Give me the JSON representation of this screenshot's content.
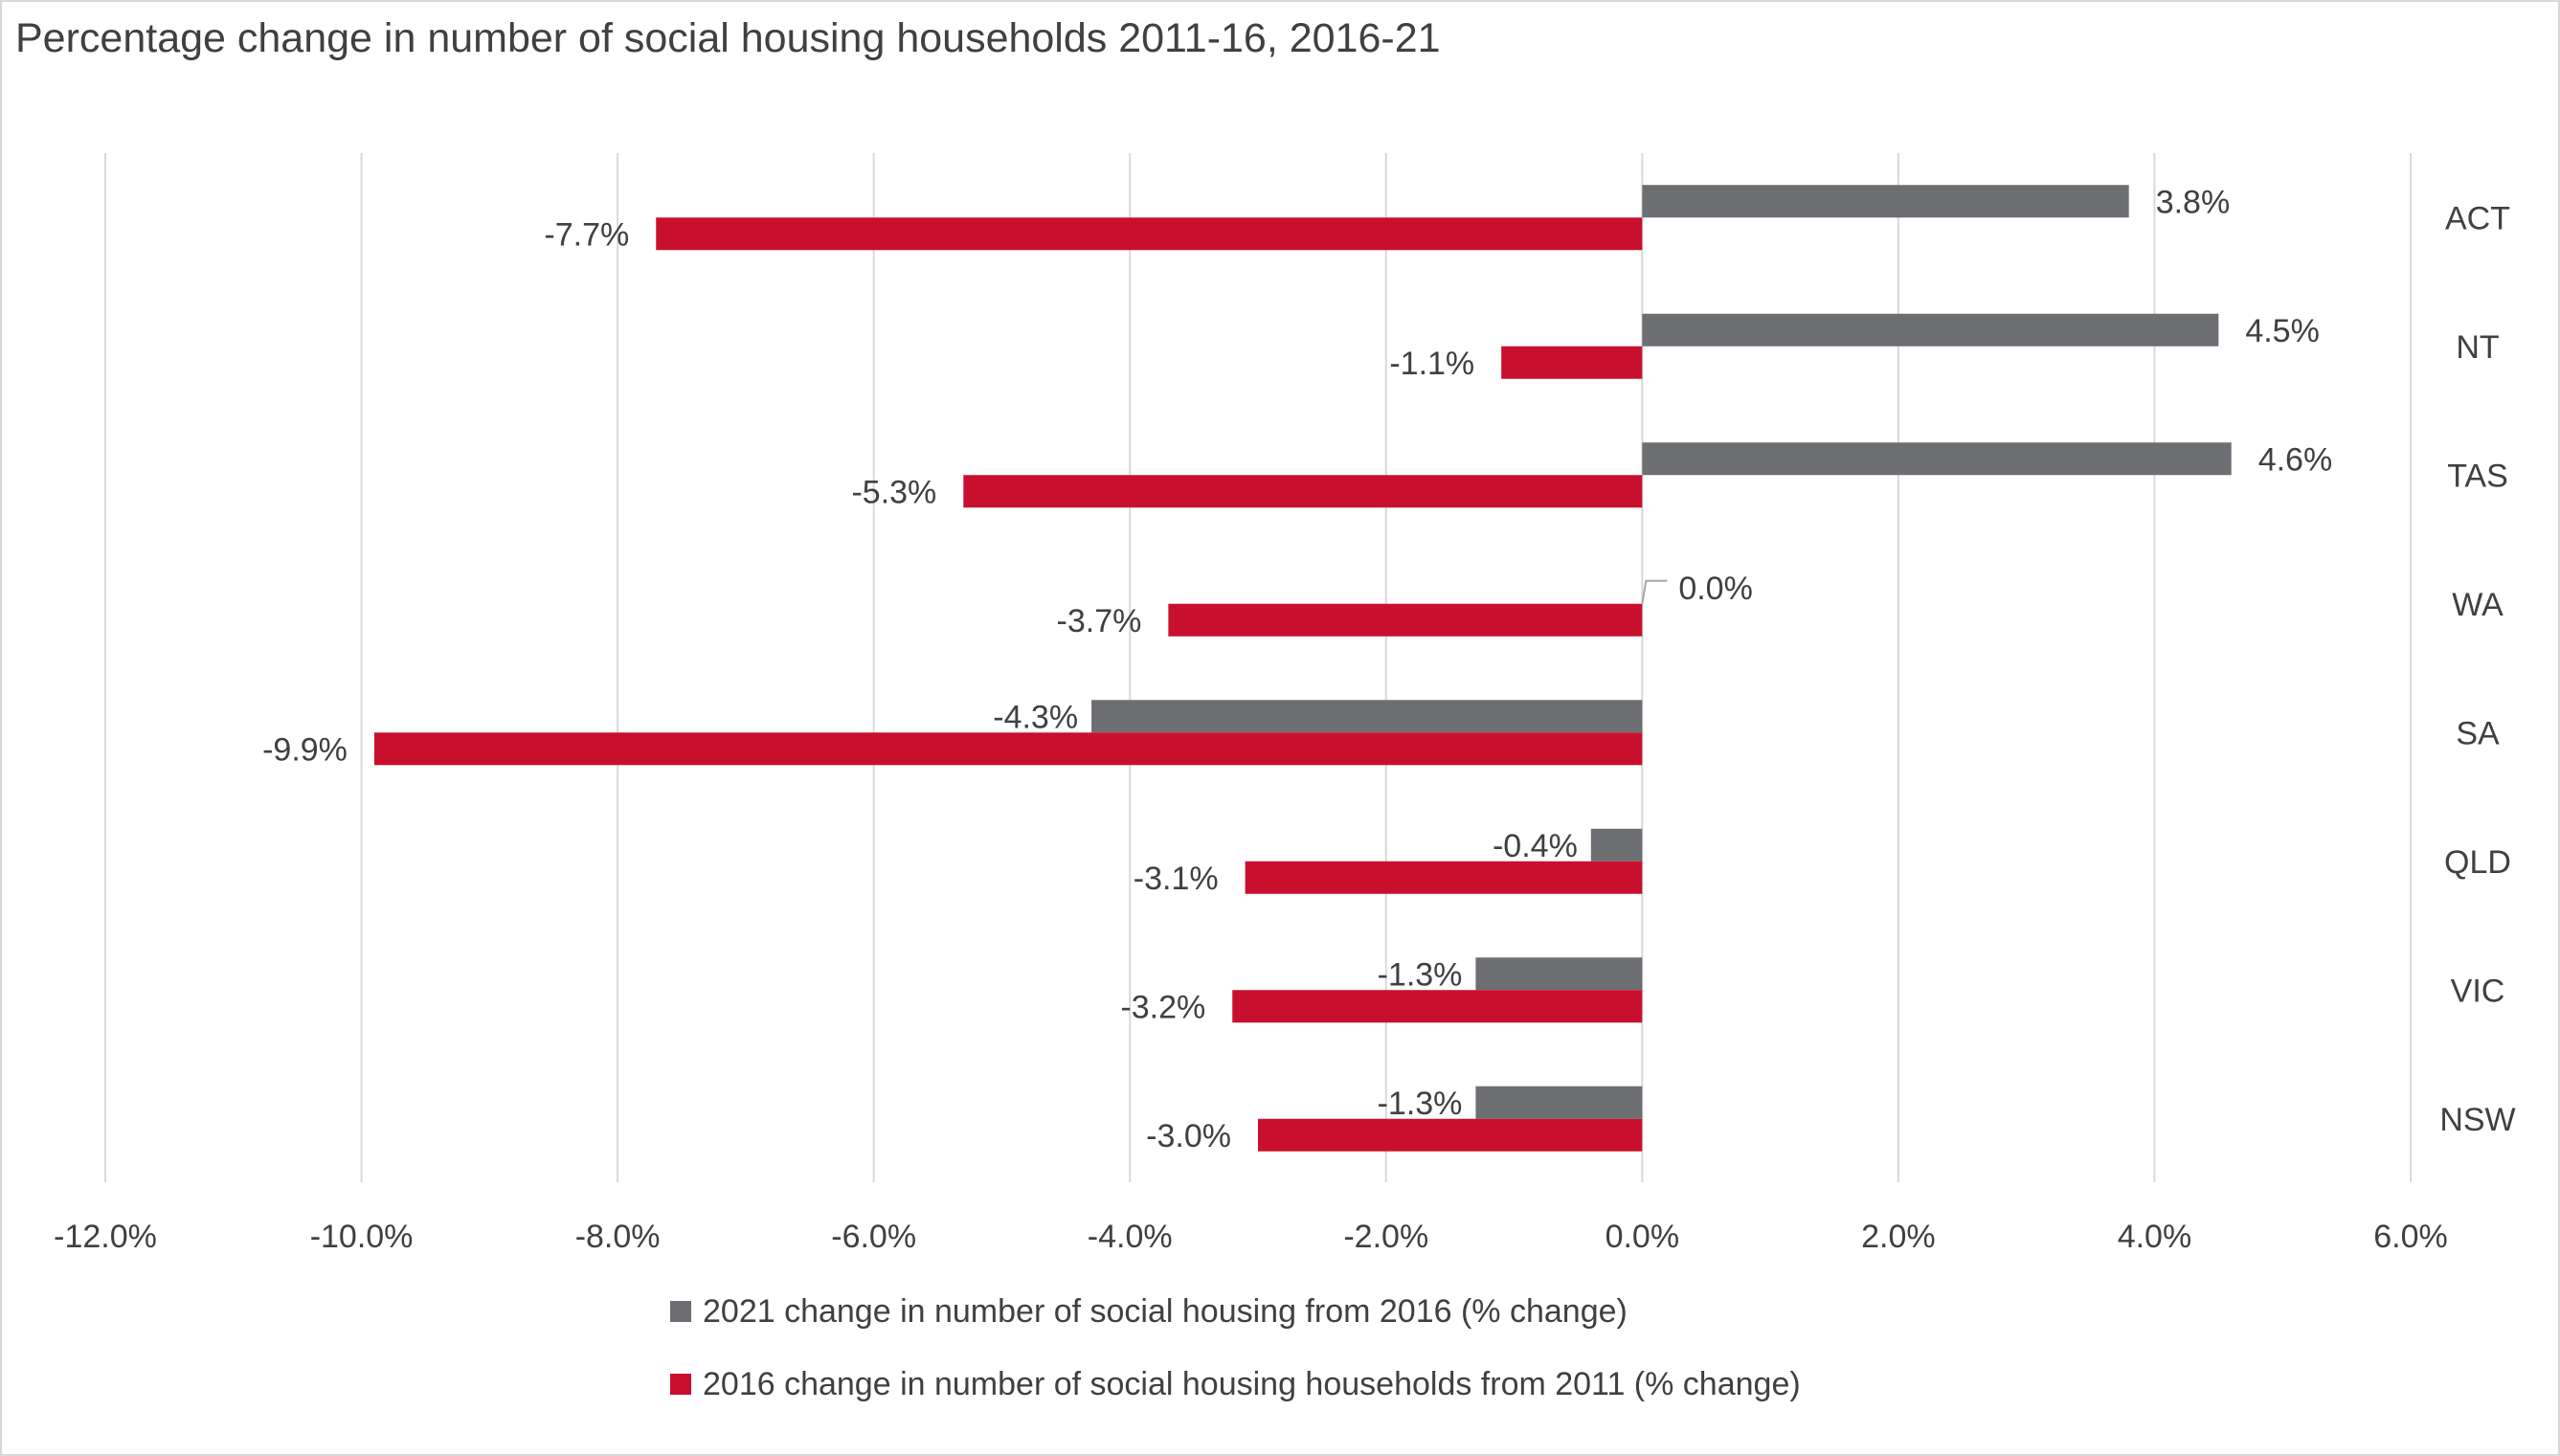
{
  "chart_data": {
    "type": "bar",
    "orientation": "horizontal",
    "title": "Percentage change in number of social housing households 2011-16, 2016-21",
    "categories": [
      "ACT",
      "NT",
      "TAS",
      "WA",
      "SA",
      "QLD",
      "VIC",
      "NSW"
    ],
    "series": [
      {
        "name": "2021 change in number of social housing from 2016 (% change)",
        "color": "#6d6e71",
        "values": [
          3.8,
          4.5,
          4.6,
          0.0,
          -4.3,
          -0.4,
          -1.3,
          -1.3
        ],
        "labels": [
          "3.8%",
          "4.5%",
          "4.6%",
          "0.0%",
          "-4.3%",
          "-0.4%",
          "-1.3%",
          "-1.3%"
        ]
      },
      {
        "name": "2016 change in number of social housing households from 2011 (% change)",
        "color": "#c8102e",
        "values": [
          -7.7,
          -1.1,
          -5.3,
          -3.7,
          -9.9,
          -3.1,
          -3.2,
          -3.0
        ],
        "labels": [
          "-7.7%",
          "-1.1%",
          "-5.3%",
          "-3.7%",
          "-9.9%",
          "-3.1%",
          "-3.2%",
          "-3.0%"
        ]
      }
    ],
    "xlim": [
      -12,
      6
    ],
    "xticks": [
      -12,
      -10,
      -8,
      -6,
      -4,
      -2,
      0,
      2,
      4,
      6
    ],
    "xtick_labels": [
      "-12.0%",
      "-10.0%",
      "-8.0%",
      "-6.0%",
      "-4.0%",
      "-2.0%",
      "0.0%",
      "2.0%",
      "4.0%",
      "6.0%"
    ],
    "xlabel": "",
    "ylabel": "",
    "grid": "vertical",
    "legend_position": "bottom",
    "axis_color": "#d9d9d9"
  }
}
